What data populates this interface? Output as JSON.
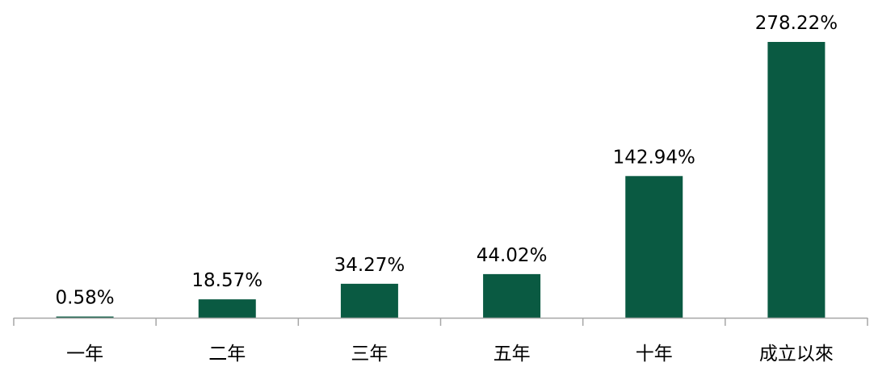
{
  "chart_data": {
    "type": "bar",
    "categories": [
      "一年",
      "二年",
      "三年",
      "五年",
      "十年",
      "成立以來"
    ],
    "values": [
      0.58,
      18.57,
      34.27,
      44.02,
      142.94,
      278.22
    ],
    "value_labels": [
      "0.58%",
      "18.57%",
      "34.27%",
      "44.02%",
      "142.94%",
      "278.22%"
    ],
    "title": "",
    "xlabel": "",
    "ylabel": "",
    "ylim": [
      0,
      278.22
    ],
    "grid": false,
    "legend": "none",
    "bar_color": "#0a5a42",
    "axis_color": "#a6a6a6"
  }
}
